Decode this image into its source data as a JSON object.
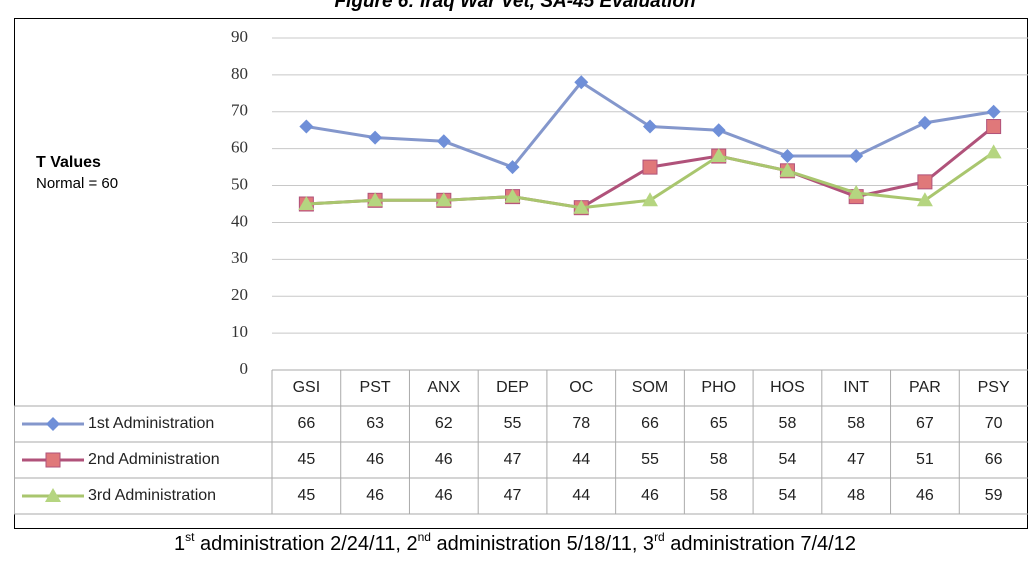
{
  "chart_data": {
    "type": "line",
    "title": "Figure 6: Iraq War Vet, SA-45 Evaluation",
    "ylabel": "T Values",
    "ysublabel": "Normal = 60",
    "categories": [
      "GSI",
      "PST",
      "ANX",
      "DEP",
      "OC",
      "SOM",
      "PHO",
      "HOS",
      "INT",
      "PAR",
      "PSY"
    ],
    "series": [
      {
        "name": "1st Administration",
        "color": "#8497cc",
        "marker": "diamond",
        "marker_color": "#6f8fd8",
        "values": [
          66,
          63,
          62,
          55,
          78,
          66,
          65,
          58,
          58,
          67,
          70
        ]
      },
      {
        "name": "2nd Administration",
        "color": "#b0527a",
        "marker": "square",
        "marker_color": "#e0787a",
        "values": [
          45,
          46,
          46,
          47,
          44,
          55,
          58,
          54,
          47,
          51,
          66
        ]
      },
      {
        "name": "3rd Administration",
        "color": "#a9c66e",
        "marker": "triangle",
        "marker_color": "#b5d580",
        "values": [
          45,
          46,
          46,
          47,
          44,
          46,
          58,
          54,
          48,
          46,
          59
        ]
      }
    ],
    "ylim": [
      0,
      90
    ],
    "yticks": [
      0,
      10,
      20,
      30,
      40,
      50,
      60,
      70,
      80,
      90
    ],
    "grid": true,
    "caption": [
      "1",
      "st",
      " administration 2/24/11, 2",
      "nd",
      " administration 5/18/11, 3",
      "rd",
      " administration 7/4/12"
    ]
  }
}
